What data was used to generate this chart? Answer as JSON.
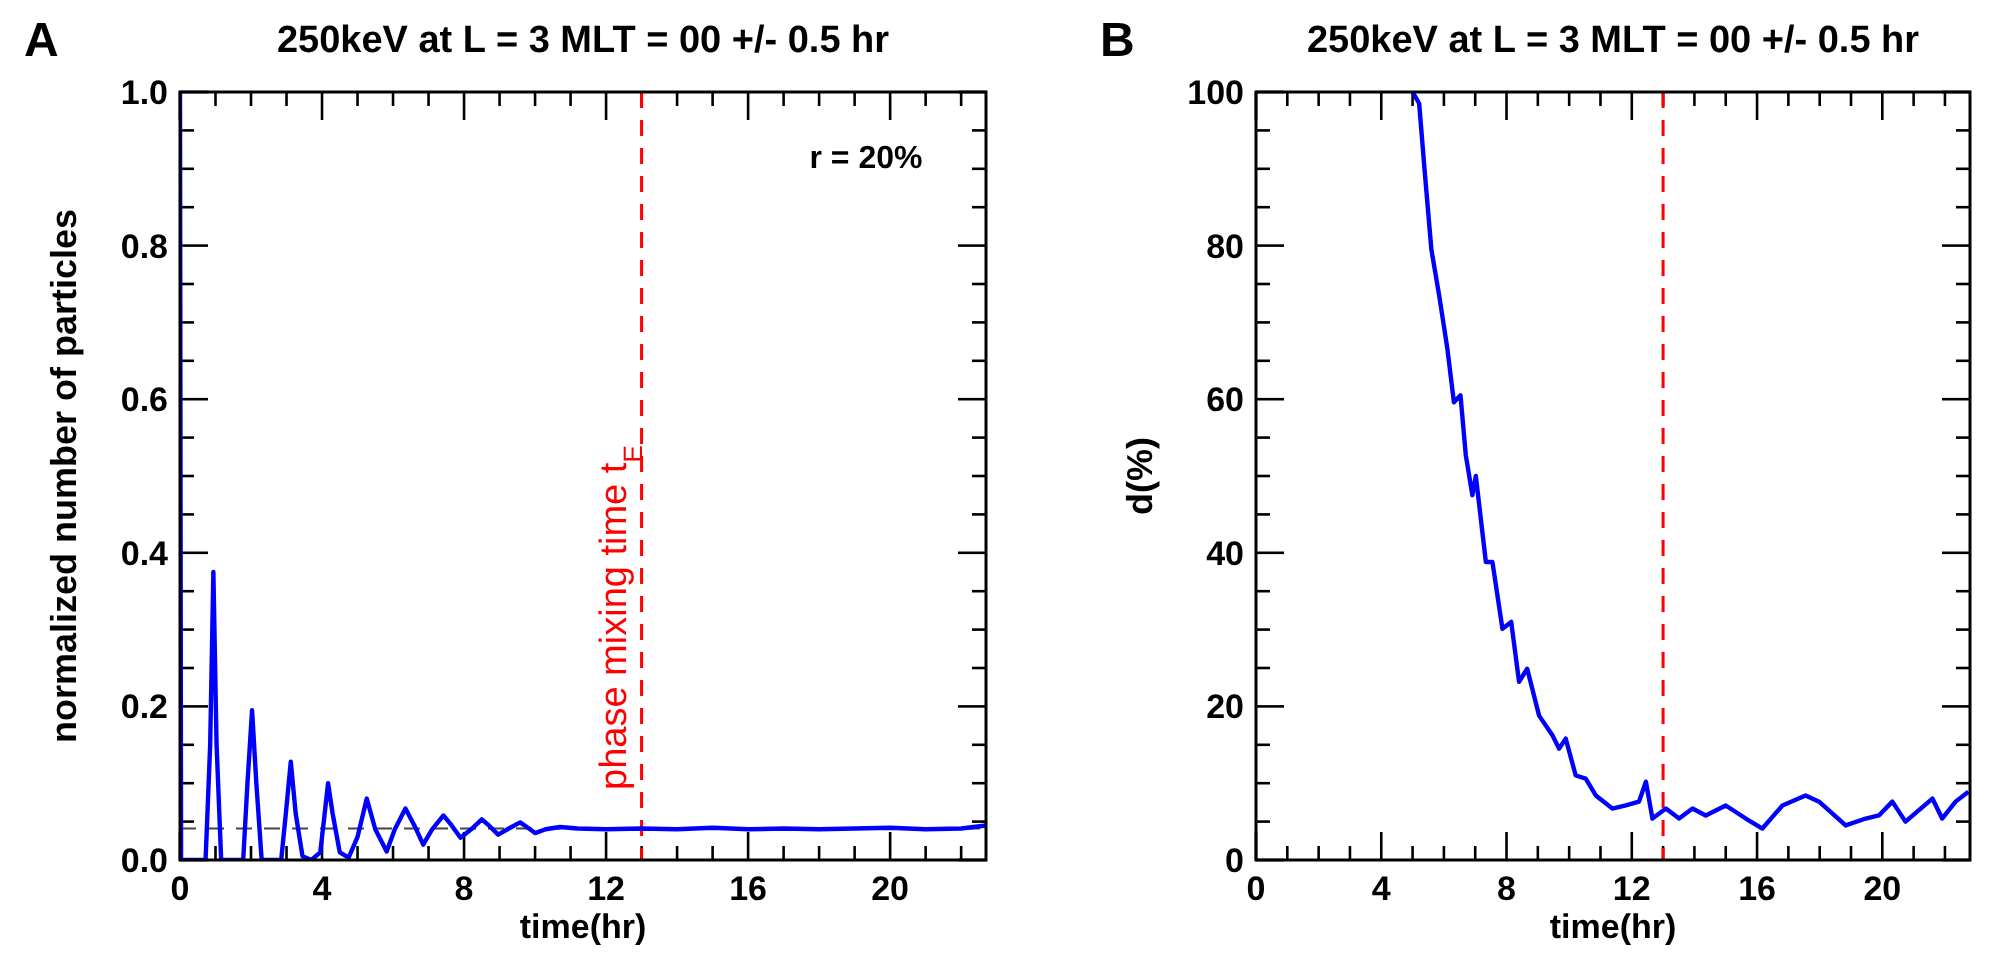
{
  "chart_data": [
    {
      "type": "line",
      "title": "250keV at L = 3 MLT = 00 +/- 0.5 hr",
      "xlabel": "time(hr)",
      "ylabel": "normalized number of particles",
      "annotations": [
        "A",
        "r = 20%"
      ],
      "series": [
        {
          "color": "#0000ff",
          "x": [
            0,
            0.03,
            0.72,
            0.85,
            0.94,
            1.03,
            1.16,
            1.78,
            1.9,
            2.03,
            2.15,
            2.3,
            2.85,
            2.98,
            3.12,
            3.26,
            3.45,
            3.7,
            3.95,
            4.05,
            4.17,
            4.3,
            4.5,
            4.75,
            5.0,
            5.26,
            5.5,
            5.82,
            6.05,
            6.35,
            6.6,
            6.85,
            7.1,
            7.42,
            7.65,
            7.9,
            8.2,
            8.5,
            8.7,
            8.96,
            9.3,
            9.58,
            9.8,
            10.0,
            10.3,
            10.7,
            11.2,
            12,
            13,
            14,
            15,
            16,
            17,
            18,
            19,
            20,
            21,
            22,
            22.7
          ],
          "values": [
            1.0,
            0,
            0,
            0.15,
            0.375,
            0.15,
            0,
            0,
            0.1,
            0.195,
            0.1,
            0,
            0,
            0.06,
            0.128,
            0.06,
            0.005,
            0,
            0.01,
            0.05,
            0.1,
            0.06,
            0.01,
            0.003,
            0.03,
            0.08,
            0.04,
            0.011,
            0.04,
            0.067,
            0.045,
            0.02,
            0.04,
            0.058,
            0.045,
            0.029,
            0.04,
            0.053,
            0.045,
            0.033,
            0.042,
            0.049,
            0.042,
            0.035,
            0.04,
            0.043,
            0.041,
            0.04,
            0.041,
            0.04,
            0.042,
            0.04,
            0.041,
            0.04,
            0.041,
            0.042,
            0.04,
            0.041,
            0.045
          ]
        }
      ],
      "xlim": [
        0,
        22.7
      ],
      "ylim": [
        0,
        1
      ],
      "xticks": [
        0,
        {
          "value": 1,
          "label": null
        },
        {
          "value": 2,
          "label": null
        },
        {
          "value": 3,
          "label": null
        },
        4,
        {
          "value": 5,
          "label": null
        },
        {
          "value": 6,
          "label": null
        },
        {
          "value": 7,
          "label": null
        },
        8,
        {
          "value": 9,
          "label": null
        },
        {
          "value": 10,
          "label": null
        },
        {
          "value": 11,
          "label": null
        },
        12,
        {
          "value": 13,
          "label": null
        },
        {
          "value": 14,
          "label": null
        },
        {
          "value": 15,
          "label": null
        },
        16,
        {
          "value": 17,
          "label": null
        },
        {
          "value": 18,
          "label": null
        },
        {
          "value": 19,
          "label": null
        },
        20,
        {
          "value": 21,
          "label": null
        },
        {
          "value": 22,
          "label": null
        }
      ],
      "yticks": [
        {
          "value": 0,
          "label": "0.0"
        },
        {
          "value": 0.05,
          "label": null
        },
        {
          "value": 0.1,
          "label": null
        },
        {
          "value": 0.15,
          "label": null
        },
        0.2,
        {
          "value": 0.25,
          "label": null
        },
        {
          "value": 0.3,
          "label": null
        },
        {
          "value": 0.35,
          "label": null
        },
        0.4,
        {
          "value": 0.45,
          "label": null
        },
        {
          "value": 0.5,
          "label": null
        },
        {
          "value": 0.55,
          "label": null
        },
        0.6,
        {
          "value": 0.65,
          "label": null
        },
        {
          "value": 0.7,
          "label": null
        },
        {
          "value": 0.75,
          "label": null
        },
        0.8,
        {
          "value": 0.85,
          "label": null
        },
        {
          "value": 0.9,
          "label": null
        },
        {
          "value": 0.95,
          "label": null
        },
        {
          "value": 1,
          "label": "1.0"
        }
      ],
      "ref_lines": [
        {
          "axis": "x",
          "value": 13,
          "label": "phase mixing time t$_{E}$",
          "color": "#ff0000",
          "line_style": "dashed"
        },
        {
          "axis": "y",
          "value": 0.041,
          "color": "#444444",
          "line_style": "dashed"
        }
      ]
    },
    {
      "type": "line",
      "title": "250keV at L = 3 MLT = 00 +/- 0.5 hr",
      "xlabel": "time(hr)",
      "ylabel": "d(%)",
      "annotations": [
        "B"
      ],
      "series": [
        {
          "color": "#0000ff",
          "x": [
            5.0,
            5.21,
            5.38,
            5.6,
            5.85,
            6.11,
            6.32,
            6.53,
            6.7,
            6.91,
            7.02,
            7.34,
            7.55,
            7.87,
            8.15,
            8.4,
            8.66,
            9.04,
            9.47,
            9.68,
            9.89,
            10.21,
            10.53,
            10.85,
            11.38,
            11.81,
            12.23,
            12.45,
            12.66,
            13.09,
            13.51,
            13.94,
            14.36,
            15.0,
            15.64,
            16.17,
            16.81,
            17.55,
            17.98,
            18.83,
            19.47,
            19.89,
            20.32,
            20.74,
            21.6,
            21.91,
            22.34,
            22.75
          ],
          "values": [
            100,
            98.5,
            90,
            79.5,
            73.5,
            66.6,
            59.6,
            60.5,
            52.7,
            47.5,
            50,
            38.8,
            38.8,
            30.1,
            31,
            23.2,
            24.9,
            18.8,
            16.2,
            14.5,
            15.8,
            11,
            10.6,
            8.4,
            6.7,
            7.1,
            7.6,
            10.2,
            5.4,
            6.7,
            5.4,
            6.7,
            5.8,
            7.1,
            5.4,
            4.1,
            7.1,
            8.4,
            7.6,
            4.5,
            5.4,
            5.8,
            7.6,
            5,
            8,
            5.4,
            7.6,
            8.9
          ]
        }
      ],
      "xlim": [
        0,
        22.8
      ],
      "ylim": [
        0,
        100
      ],
      "xticks": [
        0,
        {
          "value": 1,
          "label": null
        },
        {
          "value": 2,
          "label": null
        },
        {
          "value": 3,
          "label": null
        },
        4,
        {
          "value": 5,
          "label": null
        },
        {
          "value": 6,
          "label": null
        },
        {
          "value": 7,
          "label": null
        },
        8,
        {
          "value": 9,
          "label": null
        },
        {
          "value": 10,
          "label": null
        },
        {
          "value": 11,
          "label": null
        },
        12,
        {
          "value": 13,
          "label": null
        },
        {
          "value": 14,
          "label": null
        },
        {
          "value": 15,
          "label": null
        },
        16,
        {
          "value": 17,
          "label": null
        },
        {
          "value": 18,
          "label": null
        },
        {
          "value": 19,
          "label": null
        },
        20,
        {
          "value": 21,
          "label": null
        },
        {
          "value": 22,
          "label": null
        }
      ],
      "yticks": [
        0,
        {
          "value": 5,
          "label": null
        },
        {
          "value": 10,
          "label": null
        },
        {
          "value": 15,
          "label": null
        },
        20,
        {
          "value": 25,
          "label": null
        },
        {
          "value": 30,
          "label": null
        },
        {
          "value": 35,
          "label": null
        },
        40,
        {
          "value": 45,
          "label": null
        },
        {
          "value": 50,
          "label": null
        },
        {
          "value": 55,
          "label": null
        },
        60,
        {
          "value": 65,
          "label": null
        },
        {
          "value": 70,
          "label": null
        },
        {
          "value": 75,
          "label": null
        },
        80,
        {
          "value": 85,
          "label": null
        },
        {
          "value": 90,
          "label": null
        },
        {
          "value": 95,
          "label": null
        },
        100
      ],
      "ref_lines": [
        {
          "axis": "x",
          "value": 13,
          "color": "#ff0000",
          "line_style": "dashed"
        }
      ]
    }
  ]
}
